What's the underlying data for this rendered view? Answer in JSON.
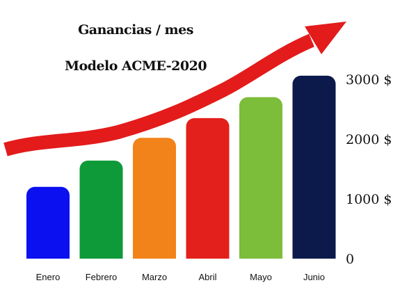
{
  "chart_data": {
    "type": "bar",
    "title": "Ganancias / mes",
    "subtitle": "Modelo ACME-2020",
    "categories": [
      "Enero",
      "Febrero",
      "Marzo",
      "Abril",
      "Mayo",
      "Junio"
    ],
    "values": [
      1200,
      1640,
      2020,
      2350,
      2700,
      3060
    ],
    "colors": [
      "#0a10f0",
      "#0f9a3a",
      "#f2831a",
      "#e3201b",
      "#7cbd3a",
      "#0b1a4b"
    ],
    "yticks": [
      0,
      1000,
      2000,
      3000
    ],
    "ytick_labels": [
      "0",
      "1000  $",
      "2000  $",
      "3000  $"
    ],
    "ylim": [
      0,
      3000
    ],
    "trend_arrow_color": "#e31b1b",
    "grid": false
  }
}
